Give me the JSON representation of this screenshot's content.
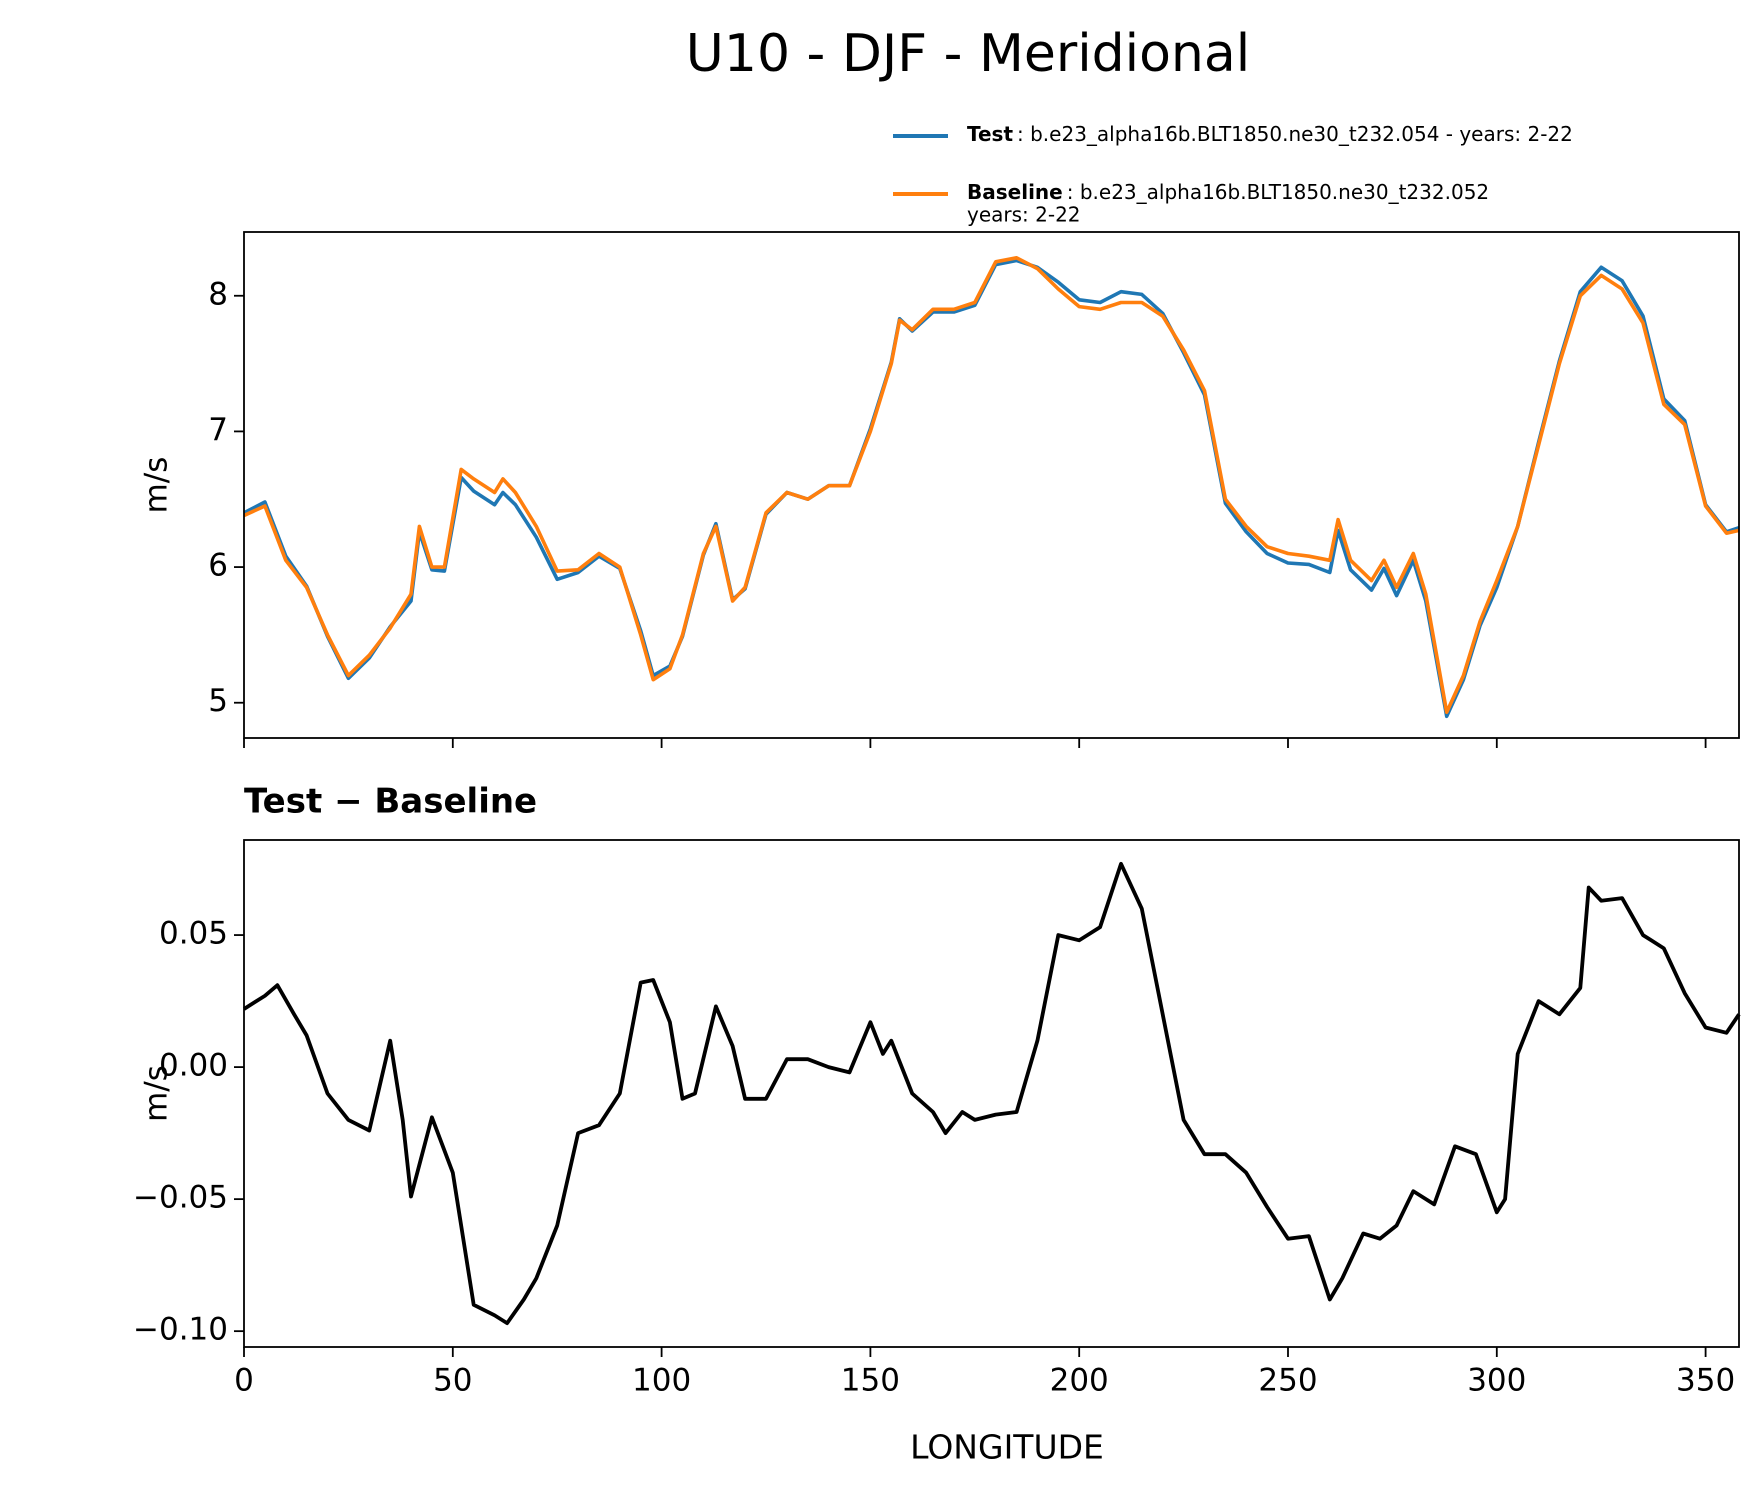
{
  "chart_data": [
    {
      "type": "line",
      "title": "U10 - DJF - Meridional",
      "ylabel": "m/s",
      "x": [
        0,
        5,
        10,
        15,
        20,
        25,
        30,
        35,
        40,
        42,
        45,
        48,
        52,
        55,
        60,
        62,
        65,
        70,
        75,
        80,
        85,
        90,
        95,
        98,
        102,
        105,
        110,
        113,
        117,
        120,
        125,
        130,
        135,
        140,
        145,
        150,
        155,
        157,
        160,
        165,
        170,
        175,
        180,
        185,
        190,
        195,
        200,
        205,
        210,
        215,
        220,
        225,
        230,
        235,
        240,
        245,
        250,
        255,
        260,
        262,
        265,
        270,
        273,
        276,
        280,
        283,
        288,
        292,
        296,
        300,
        305,
        310,
        315,
        320,
        325,
        330,
        335,
        340,
        345,
        350,
        355,
        358
      ],
      "series": [
        {
          "name": "Test",
          "label": [
            ": b.e23_alpha16b.BLT1850.ne30_t232.054 - years: 2-22"
          ],
          "color": "#1f77b4",
          "values": [
            6.4,
            6.48,
            6.08,
            5.86,
            5.49,
            5.18,
            5.33,
            5.56,
            5.75,
            6.26,
            5.98,
            5.97,
            6.66,
            6.56,
            6.46,
            6.55,
            6.46,
            6.22,
            5.91,
            5.96,
            6.08,
            5.99,
            5.53,
            5.2,
            5.27,
            5.49,
            6.09,
            6.32,
            5.76,
            5.84,
            6.39,
            6.55,
            6.5,
            6.6,
            6.6,
            7.02,
            7.51,
            7.83,
            7.74,
            7.88,
            7.88,
            7.93,
            8.23,
            8.26,
            8.21,
            8.1,
            7.97,
            7.95,
            8.03,
            8.01,
            7.87,
            7.58,
            7.27,
            6.47,
            6.26,
            6.1,
            6.03,
            6.02,
            5.96,
            6.27,
            5.98,
            5.83,
            5.99,
            5.79,
            6.05,
            5.75,
            4.9,
            5.17,
            5.57,
            5.85,
            6.3,
            6.92,
            7.52,
            8.03,
            8.21,
            8.11,
            7.85,
            7.24,
            7.08,
            6.46,
            6.26,
            6.29
          ]
        },
        {
          "name": "Baseline",
          "label": [
            ": b.e23_alpha16b.BLT1850.ne30_t232.052",
            "years: 2-22"
          ],
          "color": "#ff7f0e",
          "values": [
            6.38,
            6.45,
            6.05,
            5.85,
            5.5,
            5.2,
            5.35,
            5.55,
            5.8,
            6.3,
            6.0,
            6.0,
            6.72,
            6.65,
            6.55,
            6.65,
            6.55,
            6.3,
            5.97,
            5.98,
            6.1,
            6.0,
            5.5,
            5.17,
            5.25,
            5.5,
            6.1,
            6.3,
            5.75,
            5.85,
            6.4,
            6.55,
            6.5,
            6.6,
            6.6,
            7.0,
            7.5,
            7.82,
            7.75,
            7.9,
            7.9,
            7.95,
            8.25,
            8.28,
            8.2,
            8.05,
            7.92,
            7.9,
            7.95,
            7.95,
            7.85,
            7.6,
            7.3,
            6.5,
            6.3,
            6.15,
            6.1,
            6.08,
            6.05,
            6.35,
            6.05,
            5.9,
            6.05,
            5.85,
            6.1,
            5.8,
            4.93,
            5.2,
            5.6,
            5.9,
            6.3,
            6.9,
            7.5,
            8.0,
            8.15,
            8.05,
            7.8,
            7.2,
            7.05,
            6.45,
            6.25,
            6.27
          ]
        }
      ],
      "xlim": [
        0,
        358
      ],
      "xticks": [
        0,
        50,
        100,
        150,
        200,
        250,
        300,
        350
      ],
      "ylim": [
        4.74,
        8.47
      ],
      "yticks": [
        5,
        6,
        7,
        8
      ]
    },
    {
      "type": "line",
      "title": "Test − Baseline",
      "ylabel": "m/s",
      "xlabel": "LONGITUDE",
      "x": [
        0,
        5,
        8,
        12,
        15,
        20,
        25,
        30,
        35,
        38,
        40,
        45,
        50,
        55,
        60,
        63,
        67,
        70,
        75,
        80,
        85,
        90,
        95,
        98,
        102,
        105,
        108,
        113,
        117,
        120,
        125,
        130,
        135,
        140,
        145,
        150,
        153,
        155,
        160,
        165,
        168,
        172,
        175,
        180,
        185,
        190,
        195,
        200,
        205,
        210,
        215,
        220,
        225,
        230,
        235,
        240,
        245,
        250,
        255,
        260,
        263,
        268,
        272,
        276,
        280,
        285,
        290,
        295,
        300,
        302,
        305,
        310,
        315,
        320,
        322,
        325,
        330,
        335,
        340,
        345,
        350,
        355,
        358
      ],
      "series": [
        {
          "name": "Test − Baseline",
          "color": "#000000",
          "values": [
            0.022,
            0.027,
            0.031,
            0.02,
            0.012,
            -0.01,
            -0.02,
            -0.024,
            0.01,
            -0.02,
            -0.049,
            -0.019,
            -0.04,
            -0.09,
            -0.094,
            -0.097,
            -0.088,
            -0.08,
            -0.06,
            -0.025,
            -0.022,
            -0.01,
            0.032,
            0.033,
            0.017,
            -0.012,
            -0.01,
            0.023,
            0.008,
            -0.012,
            -0.012,
            0.003,
            0.003,
            0,
            -0.002,
            0.017,
            0.005,
            0.01,
            -0.01,
            -0.017,
            -0.025,
            -0.017,
            -0.02,
            -0.018,
            -0.017,
            0.01,
            0.05,
            0.048,
            0.053,
            0.077,
            0.06,
            0.02,
            -0.02,
            -0.033,
            -0.033,
            -0.04,
            -0.053,
            -0.065,
            -0.064,
            -0.088,
            -0.08,
            -0.063,
            -0.065,
            -0.06,
            -0.047,
            -0.052,
            -0.03,
            -0.033,
            -0.055,
            -0.05,
            0.005,
            0.025,
            0.02,
            0.03,
            0.068,
            0.063,
            0.064,
            0.05,
            0.045,
            0.028,
            0.015,
            0.013,
            0.02
          ]
        }
      ],
      "xlim": [
        0,
        358
      ],
      "xticks": [
        0,
        50,
        100,
        150,
        200,
        250,
        300,
        350
      ],
      "ylim": [
        -0.106,
        0.086
      ],
      "yticks": [
        {
          "value": -0.1,
          "label": "−0.10"
        },
        {
          "value": -0.05,
          "label": "−0.05"
        },
        {
          "value": 0,
          "label": "0.00"
        },
        {
          "value": 0.05,
          "label": "0.05"
        }
      ]
    }
  ]
}
